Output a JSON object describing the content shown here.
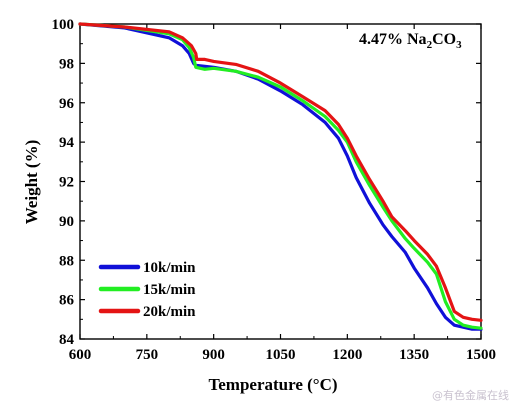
{
  "chart_data": {
    "type": "line",
    "title": "",
    "xlabel": "Temperature (°C)",
    "ylabel": "Weight (%)",
    "xlim": [
      600,
      1500
    ],
    "ylim": [
      84,
      100
    ],
    "xticks": [
      600,
      750,
      900,
      1050,
      1200,
      1350,
      1500
    ],
    "yticks": [
      84,
      86,
      88,
      90,
      92,
      94,
      96,
      98,
      100
    ],
    "grid": false,
    "legend_position": "bottom-left",
    "annotation": {
      "main": "4.47% Na",
      "sub1": "2",
      "mid": "CO",
      "sub2": "3"
    },
    "series": [
      {
        "name": "10k/min",
        "color": "#1010d8",
        "points": [
          [
            600,
            100.0
          ],
          [
            700,
            99.8
          ],
          [
            800,
            99.3
          ],
          [
            830,
            98.9
          ],
          [
            845,
            98.5
          ],
          [
            855,
            98.0
          ],
          [
            860,
            97.9
          ],
          [
            880,
            97.85
          ],
          [
            900,
            97.8
          ],
          [
            950,
            97.6
          ],
          [
            1000,
            97.2
          ],
          [
            1050,
            96.6
          ],
          [
            1100,
            95.9
          ],
          [
            1150,
            95.0
          ],
          [
            1180,
            94.2
          ],
          [
            1200,
            93.3
          ],
          [
            1220,
            92.2
          ],
          [
            1250,
            90.9
          ],
          [
            1280,
            89.8
          ],
          [
            1300,
            89.2
          ],
          [
            1330,
            88.4
          ],
          [
            1350,
            87.6
          ],
          [
            1380,
            86.6
          ],
          [
            1400,
            85.8
          ],
          [
            1420,
            85.1
          ],
          [
            1440,
            84.7
          ],
          [
            1460,
            84.6
          ],
          [
            1480,
            84.5
          ],
          [
            1500,
            84.5
          ]
        ]
      },
      {
        "name": "15k/min",
        "color": "#22ee22",
        "points": [
          [
            600,
            100.0
          ],
          [
            700,
            99.85
          ],
          [
            800,
            99.5
          ],
          [
            830,
            99.2
          ],
          [
            845,
            98.8
          ],
          [
            855,
            98.3
          ],
          [
            860,
            97.8
          ],
          [
            880,
            97.7
          ],
          [
            900,
            97.75
          ],
          [
            950,
            97.6
          ],
          [
            1000,
            97.3
          ],
          [
            1050,
            96.8
          ],
          [
            1100,
            96.1
          ],
          [
            1150,
            95.3
          ],
          [
            1180,
            94.6
          ],
          [
            1200,
            94.0
          ],
          [
            1220,
            93.0
          ],
          [
            1250,
            91.8
          ],
          [
            1280,
            90.7
          ],
          [
            1300,
            90.0
          ],
          [
            1330,
            89.1
          ],
          [
            1350,
            88.6
          ],
          [
            1380,
            87.9
          ],
          [
            1400,
            87.3
          ],
          [
            1420,
            85.9
          ],
          [
            1440,
            85.0
          ],
          [
            1460,
            84.7
          ],
          [
            1480,
            84.6
          ],
          [
            1500,
            84.55
          ]
        ]
      },
      {
        "name": "20k/min",
        "color": "#e41414",
        "points": [
          [
            600,
            100.0
          ],
          [
            700,
            99.85
          ],
          [
            800,
            99.6
          ],
          [
            830,
            99.3
          ],
          [
            850,
            98.9
          ],
          [
            860,
            98.5
          ],
          [
            862,
            98.2
          ],
          [
            880,
            98.2
          ],
          [
            900,
            98.1
          ],
          [
            950,
            97.95
          ],
          [
            1000,
            97.6
          ],
          [
            1050,
            97.0
          ],
          [
            1100,
            96.3
          ],
          [
            1150,
            95.6
          ],
          [
            1180,
            94.9
          ],
          [
            1200,
            94.2
          ],
          [
            1220,
            93.3
          ],
          [
            1250,
            92.1
          ],
          [
            1280,
            91.0
          ],
          [
            1300,
            90.2
          ],
          [
            1330,
            89.5
          ],
          [
            1350,
            89.0
          ],
          [
            1380,
            88.3
          ],
          [
            1400,
            87.7
          ],
          [
            1420,
            86.6
          ],
          [
            1440,
            85.4
          ],
          [
            1460,
            85.1
          ],
          [
            1480,
            85.0
          ],
          [
            1500,
            84.95
          ]
        ]
      }
    ]
  },
  "watermark": "@有色金属在线"
}
